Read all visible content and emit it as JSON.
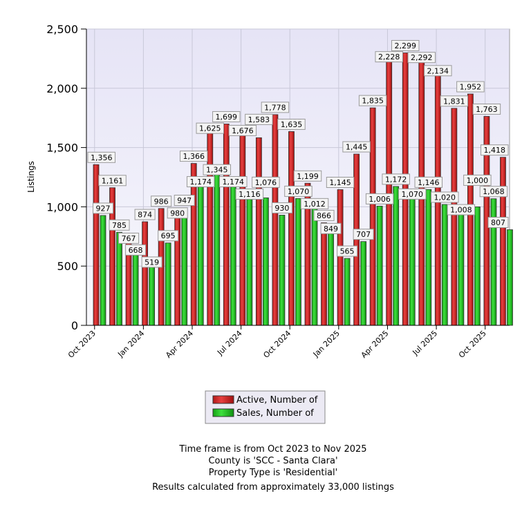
{
  "chart_data": {
    "type": "bar",
    "title": "",
    "xlabel": "",
    "ylabel": "Listings",
    "ylim": [
      0,
      2500
    ],
    "yticks": [
      "0",
      "500",
      "1,000",
      "1,500",
      "2,000",
      "2,500"
    ],
    "grid": true,
    "legend_position": "bottom",
    "categories": [
      "Oct 2023",
      "Nov 2023",
      "Dec 2023",
      "Jan 2024",
      "Feb 2024",
      "Mar 2024",
      "Apr 2024",
      "May 2024",
      "Jun 2024",
      "Jul 2024",
      "Aug 2024",
      "Sep 2024",
      "Oct 2024",
      "Nov 2024",
      "Dec 2024",
      "Jan 2025",
      "Feb 2025",
      "Mar 2025",
      "Apr 2025",
      "May 2025",
      "Jun 2025",
      "Jul 2025",
      "Aug 2025",
      "Sep 2025",
      "Oct 2025",
      "Nov 2025"
    ],
    "xtick_labels": [
      "Oct 2023",
      "Jan 2024",
      "Apr 2024",
      "Jul 2024",
      "Oct 2024",
      "Jan 2025",
      "Apr 2025",
      "Jul 2025",
      "Oct 2025"
    ],
    "series": [
      {
        "name": "Active, Number of",
        "color": "#d42a2a",
        "values": [
          1356,
          1161,
          767,
          874,
          986,
          980,
          1366,
          1625,
          1699,
          1676,
          1583,
          1778,
          1635,
          1199,
          866,
          1145,
          1445,
          1835,
          2228,
          2299,
          2292,
          2134,
          1831,
          1952,
          1763,
          1418
        ]
      },
      {
        "name": "Sales, Number of",
        "color": "#22c322",
        "values": [
          927,
          785,
          668,
          519,
          695,
          947,
          1174,
          1345,
          1174,
          1116,
          1076,
          930,
          1070,
          1012,
          849,
          565,
          707,
          1006,
          1172,
          1070,
          1146,
          1020,
          1008,
          1000,
          1068,
          807
        ]
      }
    ]
  },
  "notes": [
    "Time frame is from Oct 2023 to Nov 2025",
    "County is 'SCC - Santa Clara'",
    "Property Type is 'Residential'",
    "Results calculated from approximately 33,000 listings"
  ]
}
